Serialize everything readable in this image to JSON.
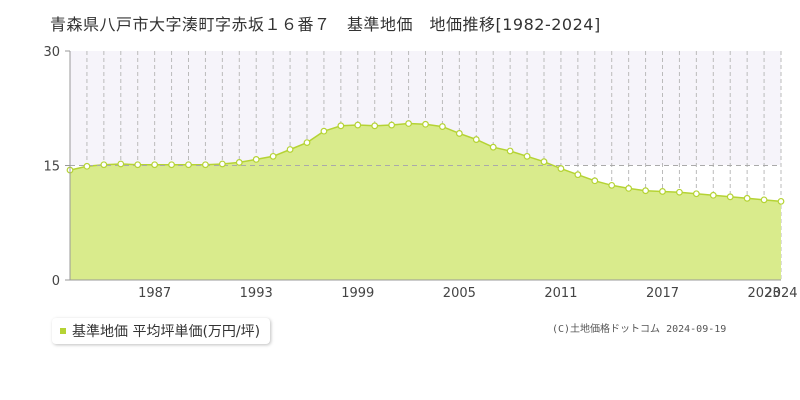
{
  "title": "青森県八戸市大字湊町字赤坂１６番７　基準地価　地価推移[1982-2024]",
  "legend": {
    "label": "基準地価 平均坪単価(万円/坪)"
  },
  "copyright": "(C)土地価格ドットコム 2024-09-19",
  "colors": {
    "fill": "#d9eb8c",
    "line": "#b5d334",
    "point_fill": "#ffffff",
    "grid": "#bbbbbb",
    "above_band": "#f6f4fa"
  },
  "chart_data": {
    "type": "area",
    "x": [
      1982,
      1983,
      1984,
      1985,
      1986,
      1987,
      1988,
      1989,
      1990,
      1991,
      1992,
      1993,
      1994,
      1995,
      1996,
      1997,
      1998,
      1999,
      2000,
      2001,
      2002,
      2003,
      2004,
      2005,
      2006,
      2007,
      2008,
      2009,
      2010,
      2011,
      2012,
      2013,
      2014,
      2015,
      2016,
      2017,
      2018,
      2019,
      2020,
      2021,
      2022,
      2023,
      2024
    ],
    "series": [
      {
        "values": [
          14.4,
          14.9,
          15.1,
          15.2,
          15.1,
          15.1,
          15.1,
          15.1,
          15.1,
          15.2,
          15.4,
          15.8,
          16.2,
          17.1,
          18.0,
          19.5,
          20.2,
          20.3,
          20.2,
          20.3,
          20.5,
          20.4,
          20.1,
          19.2,
          18.4,
          17.4,
          16.9,
          16.2,
          15.5,
          14.6,
          13.8,
          13.0,
          12.4,
          12.0,
          11.7,
          11.6,
          11.5,
          11.3,
          11.1,
          10.9,
          10.7,
          10.5,
          10.3
        ]
      }
    ],
    "xticks": [
      1987,
      1993,
      1999,
      2005,
      2011,
      2017,
      2023,
      2024
    ],
    "yticks": [
      0,
      15,
      30
    ],
    "ylim": [
      0,
      30
    ],
    "xlim": [
      1982,
      2024
    ]
  }
}
